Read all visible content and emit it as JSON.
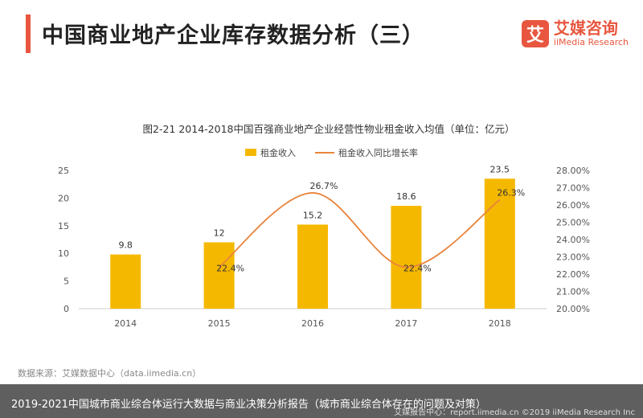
{
  "header": {
    "title": "中国商业地产企业库存数据分析（三）",
    "logo_mark": "艾",
    "logo_cn": "艾媒咨询",
    "logo_en": "iiMedia Research"
  },
  "colors": {
    "bar": "#f5b800",
    "line": "#e8843c",
    "accent": "#e8563f"
  },
  "chart_data": {
    "type": "bar",
    "title": "图2-21 2014-2018中国百强商业地产企业经营性物业租金收入均值（单位：亿元）",
    "categories": [
      "2014",
      "2015",
      "2016",
      "2017",
      "2018"
    ],
    "series": [
      {
        "name": "租金收入",
        "type": "bar",
        "axis": "left",
        "values": [
          9.8,
          12,
          15.2,
          18.6,
          23.5
        ],
        "labels": [
          "9.8",
          "12",
          "15.2",
          "18.6",
          "23.5"
        ]
      },
      {
        "name": "租金收入同比增长率",
        "type": "line",
        "axis": "right",
        "values": [
          null,
          22.4,
          26.7,
          22.4,
          26.3
        ],
        "labels": [
          "",
          "22.4%",
          "26.7%",
          "22.4%",
          "26.3%"
        ]
      }
    ],
    "ylim_left": [
      0,
      25
    ],
    "yticks_left": [
      "0",
      "5",
      "10",
      "15",
      "20",
      "25"
    ],
    "ylim_right": [
      20,
      28
    ],
    "yticks_right": [
      "20.00%",
      "21.00%",
      "22.00%",
      "23.00%",
      "24.00%",
      "25.00%",
      "26.00%",
      "27.00%",
      "28.00%"
    ],
    "legend_position": "top-center",
    "grid": false
  },
  "footer": {
    "source": "数据来源：艾媒数据中心（data.iimedia.cn）",
    "caption": "2019-2021中国城市商业综合体运行大数据与商业决策分析报告（城市商业综合体存在的问题及对策）",
    "credit": "艾媒报告中心：report.iimedia.cn  ©2019  iiMedia Research  Inc"
  }
}
